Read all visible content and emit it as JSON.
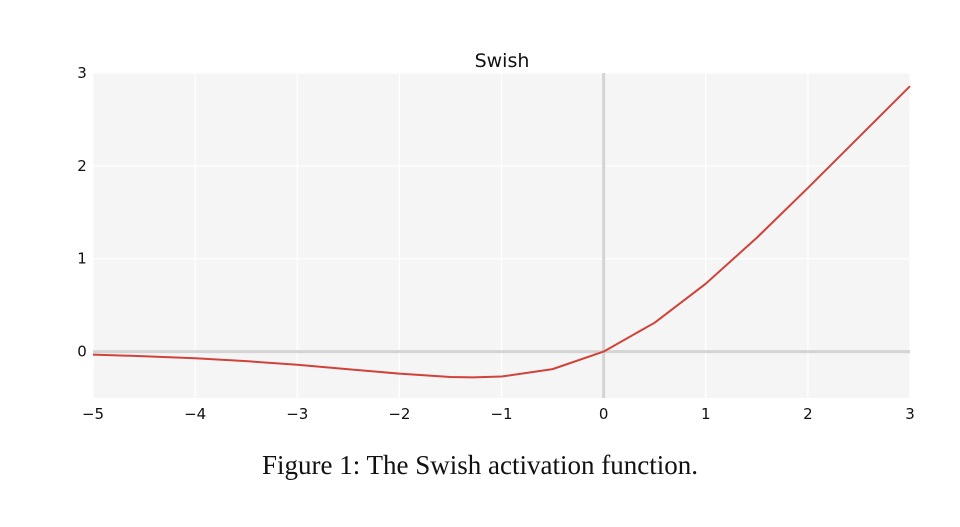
{
  "chart_data": {
    "type": "line",
    "title": "Swish",
    "xlabel": "",
    "ylabel": "",
    "xlim": [
      -5,
      3
    ],
    "ylim": [
      -0.5,
      3
    ],
    "x_ticks": [
      -5,
      -4,
      -3,
      -2,
      -1,
      0,
      1,
      2,
      3
    ],
    "x_tick_labels": [
      "−5",
      "−4",
      "−3",
      "−2",
      "−1",
      "0",
      "1",
      "2",
      "3"
    ],
    "y_ticks": [
      0,
      1,
      2,
      3
    ],
    "y_tick_labels": [
      "0",
      "1",
      "2",
      "3"
    ],
    "grid": true,
    "series": [
      {
        "color": "#d0423a",
        "x": [
          -5,
          -4.5,
          -4,
          -3.5,
          -3,
          -2.5,
          -2,
          -1.5,
          -1.28,
          -1,
          -0.5,
          0,
          0.5,
          1,
          1.5,
          2,
          2.5,
          3
        ],
        "y": [
          -0.033,
          -0.05,
          -0.072,
          -0.103,
          -0.142,
          -0.19,
          -0.238,
          -0.274,
          -0.278,
          -0.269,
          -0.189,
          0,
          0.311,
          0.731,
          1.226,
          1.762,
          2.31,
          2.858
        ]
      }
    ]
  },
  "caption": "Figure 1: The Swish activation function."
}
